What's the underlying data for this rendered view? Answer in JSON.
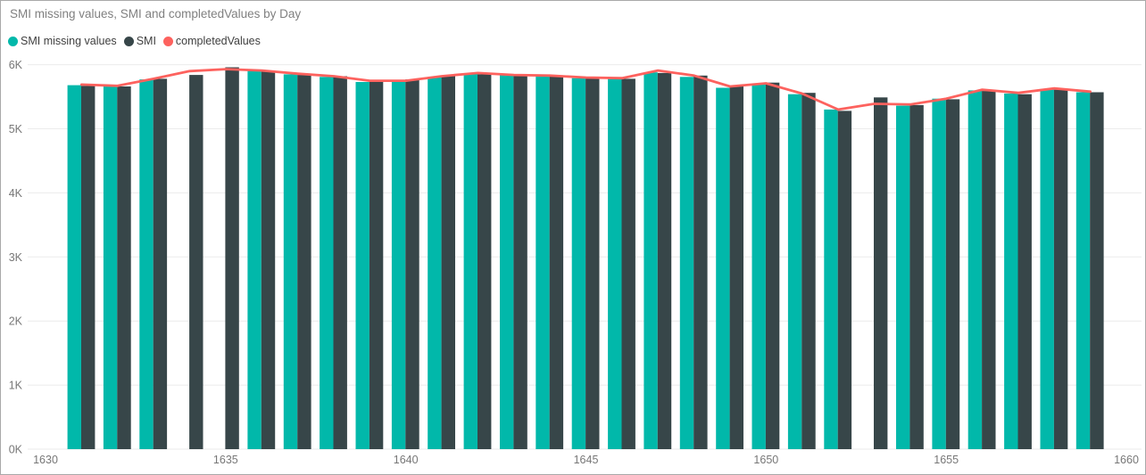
{
  "window": {
    "background": "#FFFFFF",
    "border_color": "#A9A9A9"
  },
  "title": "SMI missing values, SMI and completedValues by Day",
  "legend": {
    "position": "top-left",
    "items": [
      {
        "label": "SMI missing values",
        "color": "#01B8AA",
        "marker": "circle",
        "series_type": "bar"
      },
      {
        "label": "SMI",
        "color": "#374649",
        "marker": "circle",
        "series_type": "bar"
      },
      {
        "label": "completedValues",
        "color": "#FD625E",
        "marker": "circle",
        "series_type": "line"
      }
    ]
  },
  "axes": {
    "y_tick_labels": [
      "0K",
      "1K",
      "2K",
      "3K",
      "4K",
      "5K",
      "6K"
    ],
    "x_tick_labels": [
      "1630",
      "1635",
      "1640",
      "1645",
      "1650",
      "1655",
      "1660"
    ],
    "tick_color": "#777777",
    "gridline_color": "#EBEBEB"
  },
  "chart_data": {
    "type": "bar",
    "subtype": "grouped-column-with-line-overlay",
    "title": "SMI missing values, SMI and completedValues by Day",
    "xlabel": "",
    "ylabel": "",
    "x": [
      1631,
      1632,
      1633,
      1634,
      1635,
      1636,
      1637,
      1638,
      1639,
      1640,
      1641,
      1642,
      1643,
      1644,
      1645,
      1646,
      1647,
      1648,
      1649,
      1650,
      1651,
      1652,
      1653,
      1654,
      1655,
      1656,
      1657,
      1658,
      1659
    ],
    "series": [
      {
        "name": "SMI missing values",
        "type": "bar",
        "color": "#01B8AA",
        "values": [
          5680,
          5660,
          5770,
          null,
          null,
          5900,
          5850,
          5810,
          5730,
          5740,
          5810,
          5860,
          5840,
          5830,
          5790,
          5780,
          5880,
          5810,
          5640,
          5700,
          5540,
          5300,
          null,
          5360,
          5470,
          5600,
          5550,
          5620,
          5570
        ]
      },
      {
        "name": "SMI",
        "type": "bar",
        "color": "#374649",
        "values": [
          5670,
          5660,
          5780,
          5840,
          5960,
          5890,
          5840,
          5820,
          5760,
          5770,
          5830,
          5850,
          5840,
          5830,
          5800,
          5780,
          5870,
          5830,
          5670,
          5720,
          5560,
          5280,
          5490,
          5370,
          5460,
          5590,
          5540,
          5610,
          5570
        ]
      },
      {
        "name": "completedValues",
        "type": "line",
        "color": "#FD625E",
        "values": [
          5690,
          5670,
          5780,
          5900,
          5930,
          5910,
          5860,
          5820,
          5750,
          5750,
          5820,
          5870,
          5840,
          5830,
          5800,
          5790,
          5910,
          5830,
          5660,
          5710,
          5550,
          5300,
          5390,
          5380,
          5470,
          5610,
          5560,
          5630,
          5580
        ]
      }
    ],
    "x_ticks": [
      1630,
      1635,
      1640,
      1645,
      1650,
      1655,
      1660
    ],
    "y_ticks": [
      0,
      1000,
      2000,
      3000,
      4000,
      5000,
      6000
    ],
    "xlim": [
      1630,
      1660
    ],
    "ylim": [
      0,
      6000
    ],
    "grid": "horizontal",
    "legend_position": "top-left"
  }
}
